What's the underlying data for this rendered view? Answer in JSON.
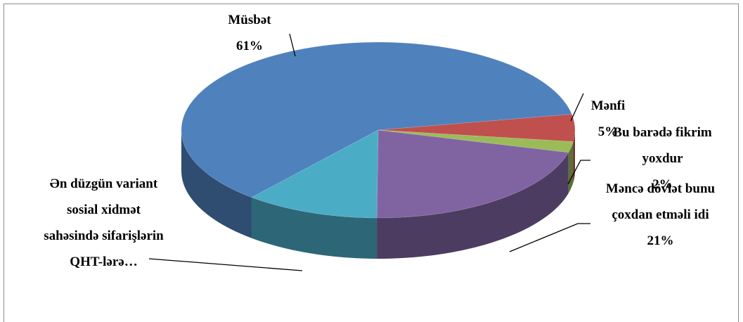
{
  "chart_data": {
    "type": "pie",
    "categories": [
      "Müsbət",
      "Mənfi",
      "Bu barədə fikrim yoxdur",
      "Məncə dövlət bunu çoxdan etməli idi",
      "Ən düzgün variant sosial xidmət sahəsində sifarişlərin QHT-lərə…"
    ],
    "values": [
      61,
      5,
      2,
      21,
      11
    ],
    "value_labels": [
      "61%",
      "5%",
      "2%",
      "21%",
      null
    ],
    "colors": [
      "#4f81bd",
      "#c0504d",
      "#9bbb59",
      "#8064a2",
      "#4bacc6"
    ],
    "three_d": true
  }
}
